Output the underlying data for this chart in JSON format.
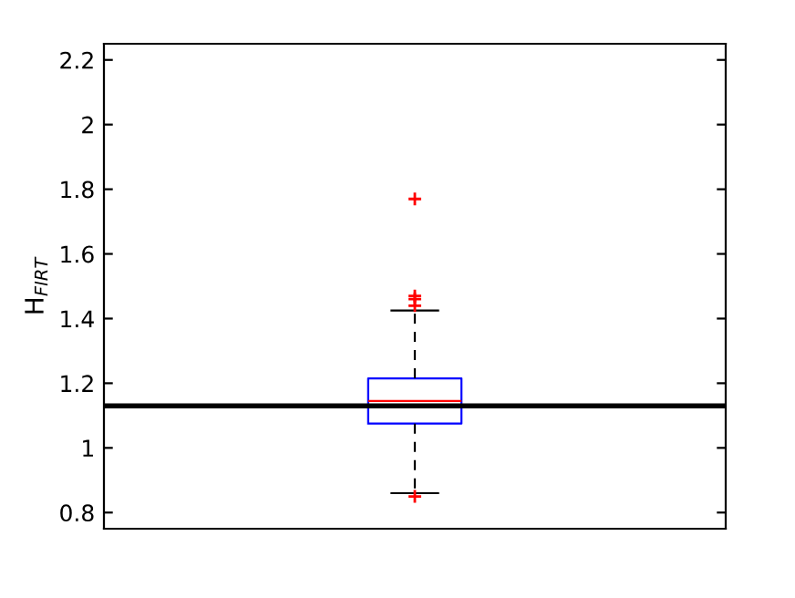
{
  "chart_data": {
    "type": "box",
    "ylabel": "H$_{FIRT}$",
    "categories": [
      null
    ],
    "series": [
      {
        "color": "#0000ff",
        "boxes": [
          {
            "low": 0.86,
            "q1": 1.075,
            "median": 1.145,
            "q3": 1.215,
            "high": 1.425,
            "outliers": [
              1.77,
              1.47,
              1.46,
              1.44,
              0.85
            ]
          }
        ]
      }
    ],
    "ylim": [
      0.75,
      2.25
    ],
    "yticks": [
      0.8,
      1,
      1.2,
      1.4,
      1.6,
      1.8,
      2,
      2.2
    ],
    "ref_lines": [
      {
        "axis": "y",
        "value": 1.13,
        "color": "#000000",
        "line_style": "solid"
      }
    ],
    "tick_labels": "y",
    "grid": false,
    "legend": false
  }
}
